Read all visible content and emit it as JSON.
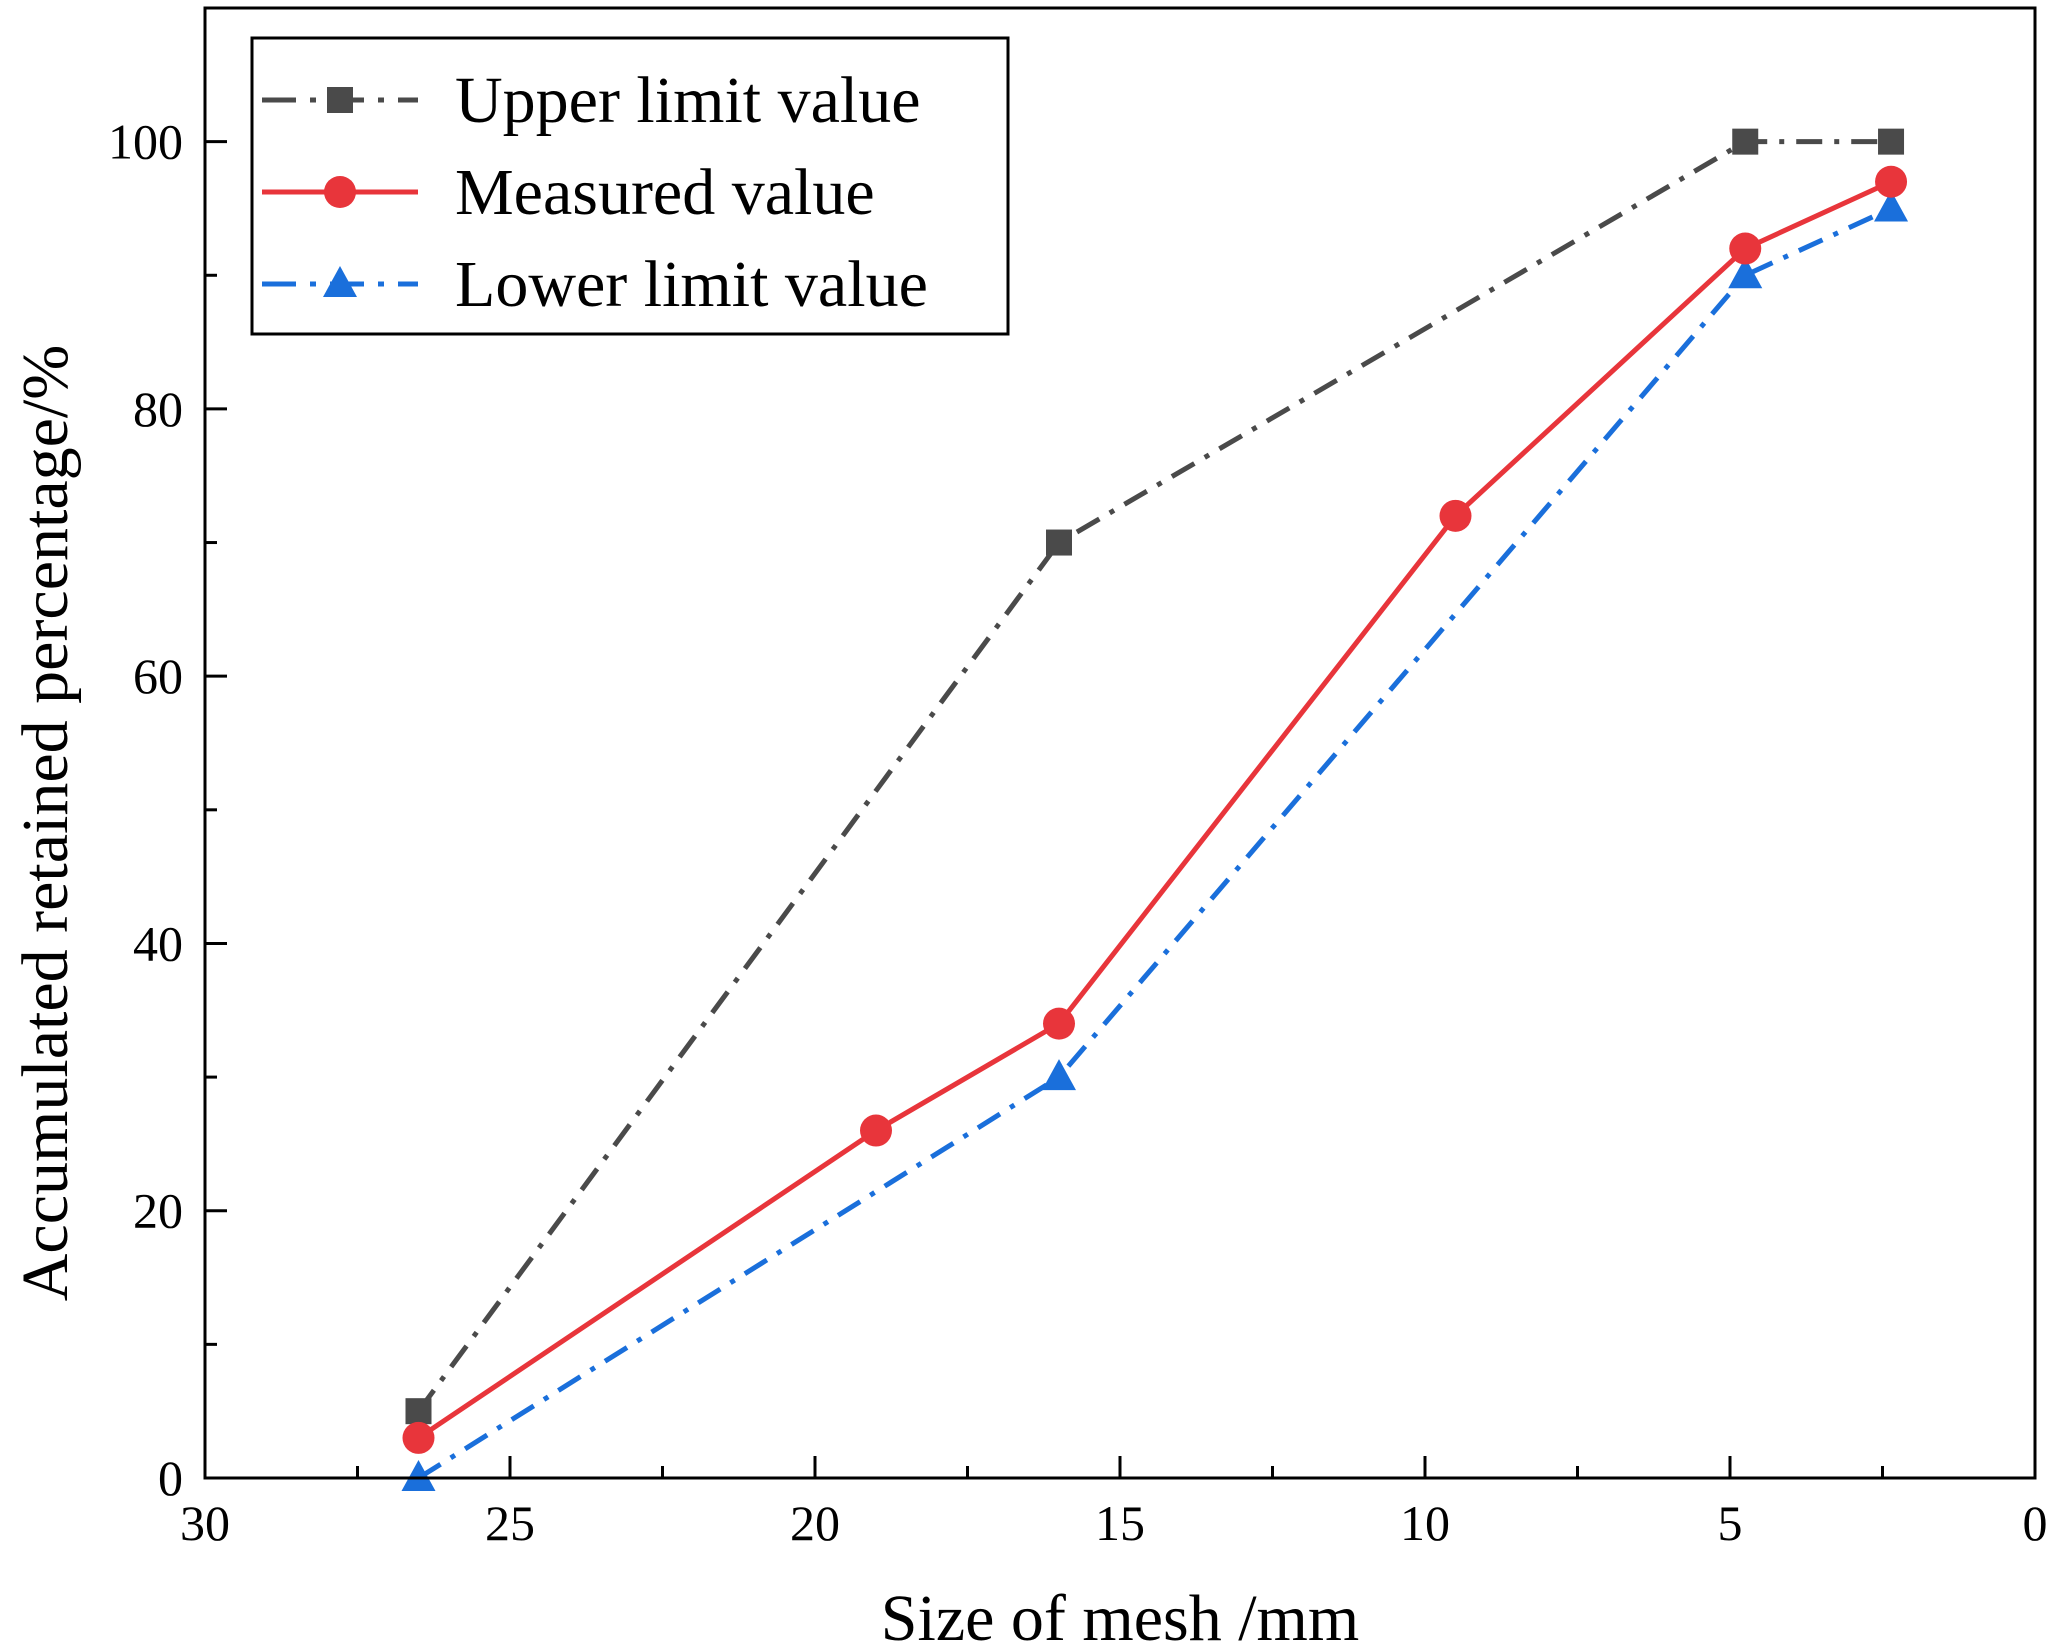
{
  "chart_data": {
    "type": "line",
    "title": "",
    "xlabel": "Size of mesh /mm",
    "ylabel": "Accumulated retained percentage/%",
    "xlim": [
      30,
      0
    ],
    "ylim": [
      0,
      110
    ],
    "x_ticks": [
      30,
      25,
      20,
      15,
      10,
      5,
      0
    ],
    "y_ticks": [
      0,
      20,
      40,
      60,
      80,
      100
    ],
    "x_tick_labels": [
      "30",
      "25",
      "20",
      "15",
      "10",
      "5",
      "0"
    ],
    "y_tick_labels": [
      "0",
      "20",
      "40",
      "60",
      "80",
      "100"
    ],
    "grid": false,
    "legend_position": "top-left",
    "series": [
      {
        "name": "Upper limit value",
        "color": "#4a4a4a",
        "marker": "square",
        "line_style": "dash-dot",
        "x": [
          26.5,
          16,
          4.75,
          2.36
        ],
        "y": [
          5,
          70,
          100,
          100
        ]
      },
      {
        "name": "Measured value",
        "color": "#e8353b",
        "marker": "circle",
        "line_style": "solid",
        "x": [
          26.5,
          19,
          16,
          9.5,
          4.75,
          2.36
        ],
        "y": [
          3,
          26,
          34,
          72,
          92,
          97
        ]
      },
      {
        "name": "Lower limit value",
        "color": "#1a6fdb",
        "marker": "triangle",
        "line_style": "dash-dot",
        "x": [
          26.5,
          16,
          4.75,
          2.36
        ],
        "y": [
          0,
          30,
          90,
          95
        ]
      }
    ]
  }
}
